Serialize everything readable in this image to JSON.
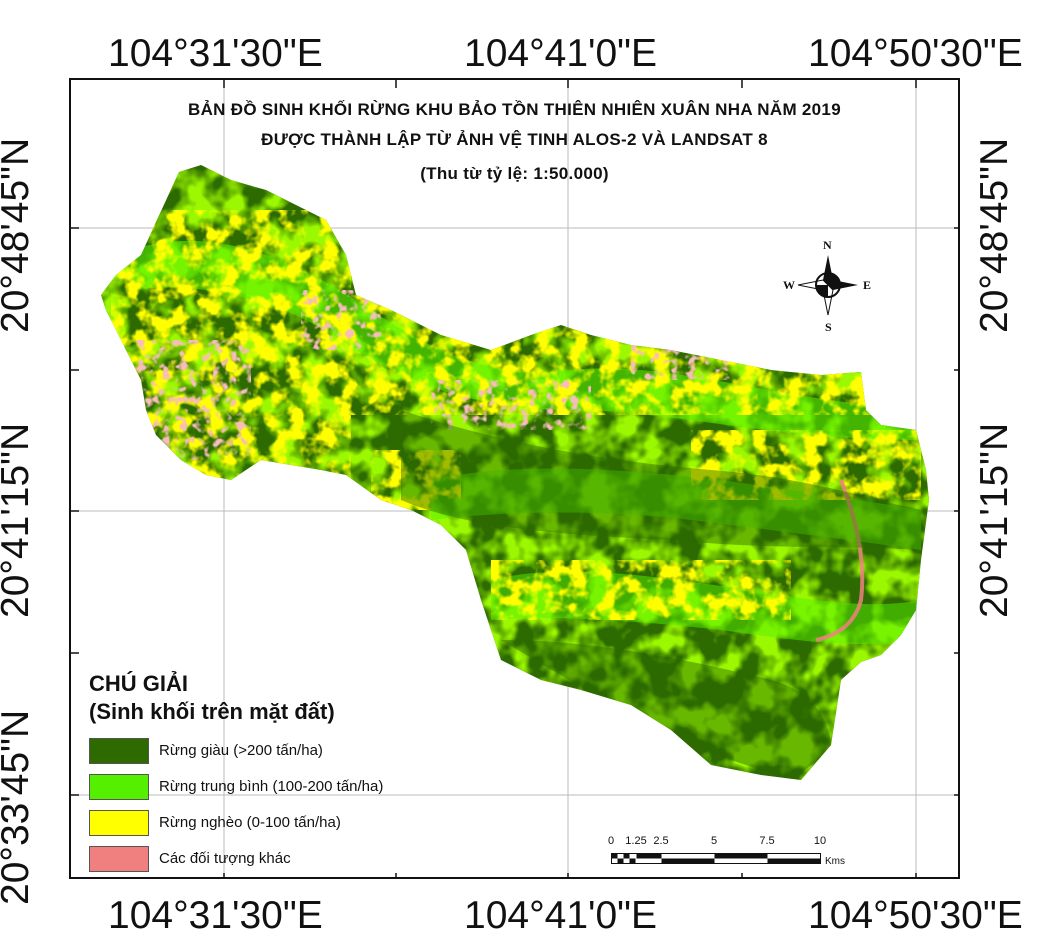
{
  "map": {
    "title_line1": "BẢN ĐỒ SINH KHỐI RỪNG KHU BẢO TỒN THIÊN NHIÊN XUÂN NHA NĂM 2019",
    "title_line2": "ĐƯỢC THÀNH LẬP TỪ ẢNH VỆ TINH ALOS-2 VÀ LANDSAT 8",
    "title_line3": "(Thu từ tỷ lệ: 1:50.000)"
  },
  "coordinates": {
    "top": [
      "104°31'30\"E",
      "104°41'0\"E",
      "104°50'30\"E"
    ],
    "bottom": [
      "104°31'30\"E",
      "104°41'0\"E",
      "104°50'30\"E"
    ],
    "left": [
      "20°48'45\"N",
      "20°41'15\"N",
      "20°33'45\"N"
    ],
    "right": [
      "20°48'45\"N",
      "20°41'15\"N"
    ]
  },
  "compass": {
    "n": "N",
    "s": "S",
    "e": "E",
    "w": "W"
  },
  "legend": {
    "title_line1": "CHÚ GIẢI",
    "title_line2": "(Sinh khối trên mặt đất)",
    "items": [
      {
        "label": "Rừng giàu (>200 tấn/ha)",
        "color": "#2d6b00"
      },
      {
        "label": "Rừng trung bình (100-200 tấn/ha)",
        "color": "#55f000"
      },
      {
        "label": "Rừng nghèo (0-100 tấn/ha)",
        "color": "#ffff00"
      },
      {
        "label": "Các đối tượng khác",
        "color": "#f08080"
      }
    ]
  },
  "scale": {
    "ticks": [
      "0",
      "1.25",
      "2.5",
      "5",
      "7.5",
      "10"
    ],
    "units": "Kms"
  },
  "colors": {
    "rich": "#2d6b00",
    "medium": "#55f000",
    "poor": "#ffff00",
    "other": "#f08080"
  }
}
